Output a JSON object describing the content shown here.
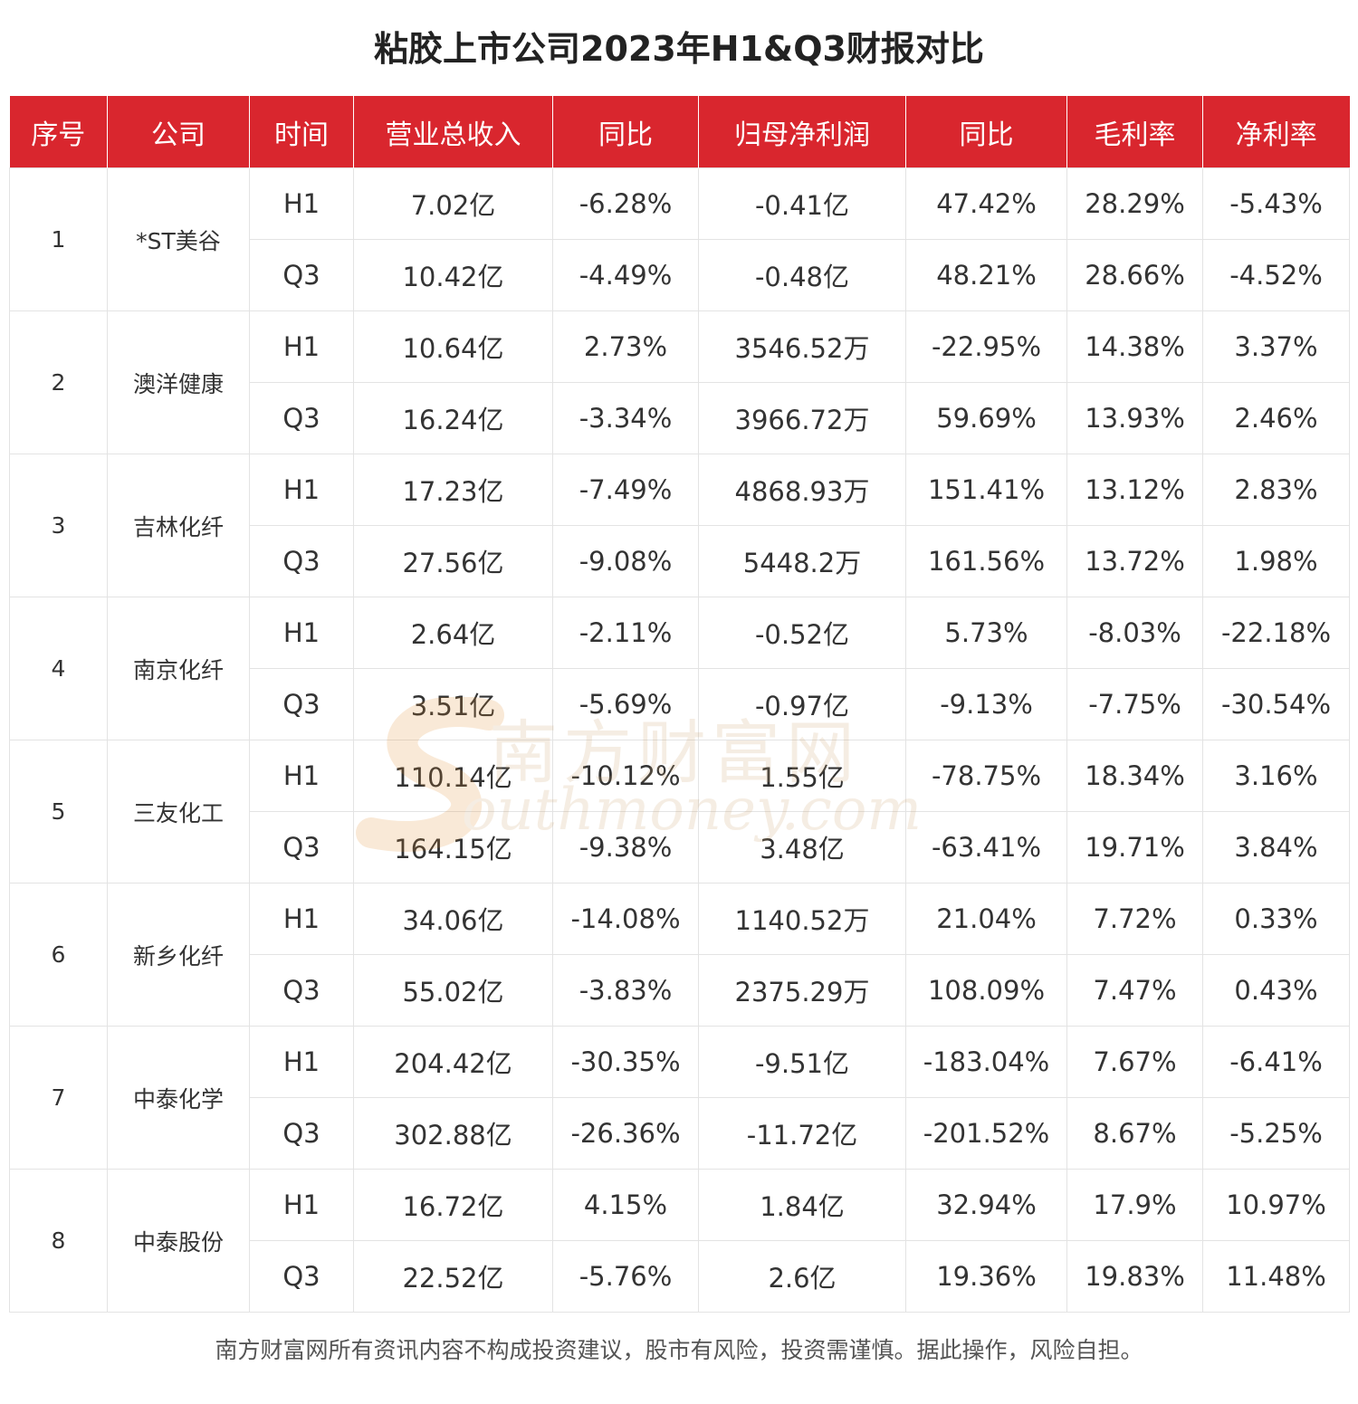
{
  "title": "粘胶上市公司2023年H1&Q3财报对比",
  "chart_data": {
    "type": "table",
    "columns": [
      "序号",
      "公司",
      "时间",
      "营业总收入",
      "同比",
      "归母净利润",
      "同比",
      "毛利率",
      "净利率"
    ],
    "rows": [
      {
        "index": "1",
        "company": "*ST美谷",
        "periods": [
          {
            "period": "H1",
            "revenue": "7.02亿",
            "revenue_yoy": "-6.28%",
            "net_profit": "-0.41亿",
            "net_profit_yoy": "47.42%",
            "gross_margin": "28.29%",
            "net_margin": "-5.43%"
          },
          {
            "period": "Q3",
            "revenue": "10.42亿",
            "revenue_yoy": "-4.49%",
            "net_profit": "-0.48亿",
            "net_profit_yoy": "48.21%",
            "gross_margin": "28.66%",
            "net_margin": "-4.52%"
          }
        ]
      },
      {
        "index": "2",
        "company": "澳洋健康",
        "periods": [
          {
            "period": "H1",
            "revenue": "10.64亿",
            "revenue_yoy": "2.73%",
            "net_profit": "3546.52万",
            "net_profit_yoy": "-22.95%",
            "gross_margin": "14.38%",
            "net_margin": "3.37%"
          },
          {
            "period": "Q3",
            "revenue": "16.24亿",
            "revenue_yoy": "-3.34%",
            "net_profit": "3966.72万",
            "net_profit_yoy": "59.69%",
            "gross_margin": "13.93%",
            "net_margin": "2.46%"
          }
        ]
      },
      {
        "index": "3",
        "company": "吉林化纤",
        "periods": [
          {
            "period": "H1",
            "revenue": "17.23亿",
            "revenue_yoy": "-7.49%",
            "net_profit": "4868.93万",
            "net_profit_yoy": "151.41%",
            "gross_margin": "13.12%",
            "net_margin": "2.83%"
          },
          {
            "period": "Q3",
            "revenue": "27.56亿",
            "revenue_yoy": "-9.08%",
            "net_profit": "5448.2万",
            "net_profit_yoy": "161.56%",
            "gross_margin": "13.72%",
            "net_margin": "1.98%"
          }
        ]
      },
      {
        "index": "4",
        "company": "南京化纤",
        "periods": [
          {
            "period": "H1",
            "revenue": "2.64亿",
            "revenue_yoy": "-2.11%",
            "net_profit": "-0.52亿",
            "net_profit_yoy": "5.73%",
            "gross_margin": "-8.03%",
            "net_margin": "-22.18%"
          },
          {
            "period": "Q3",
            "revenue": "3.51亿",
            "revenue_yoy": "-5.69%",
            "net_profit": "-0.97亿",
            "net_profit_yoy": "-9.13%",
            "gross_margin": "-7.75%",
            "net_margin": "-30.54%"
          }
        ]
      },
      {
        "index": "5",
        "company": "三友化工",
        "periods": [
          {
            "period": "H1",
            "revenue": "110.14亿",
            "revenue_yoy": "-10.12%",
            "net_profit": "1.55亿",
            "net_profit_yoy": "-78.75%",
            "gross_margin": "18.34%",
            "net_margin": "3.16%"
          },
          {
            "period": "Q3",
            "revenue": "164.15亿",
            "revenue_yoy": "-9.38%",
            "net_profit": "3.48亿",
            "net_profit_yoy": "-63.41%",
            "gross_margin": "19.71%",
            "net_margin": "3.84%"
          }
        ]
      },
      {
        "index": "6",
        "company": "新乡化纤",
        "periods": [
          {
            "period": "H1",
            "revenue": "34.06亿",
            "revenue_yoy": "-14.08%",
            "net_profit": "1140.52万",
            "net_profit_yoy": "21.04%",
            "gross_margin": "7.72%",
            "net_margin": "0.33%"
          },
          {
            "period": "Q3",
            "revenue": "55.02亿",
            "revenue_yoy": "-3.83%",
            "net_profit": "2375.29万",
            "net_profit_yoy": "108.09%",
            "gross_margin": "7.47%",
            "net_margin": "0.43%"
          }
        ]
      },
      {
        "index": "7",
        "company": "中泰化学",
        "periods": [
          {
            "period": "H1",
            "revenue": "204.42亿",
            "revenue_yoy": "-30.35%",
            "net_profit": "-9.51亿",
            "net_profit_yoy": "-183.04%",
            "gross_margin": "7.67%",
            "net_margin": "-6.41%"
          },
          {
            "period": "Q3",
            "revenue": "302.88亿",
            "revenue_yoy": "-26.36%",
            "net_profit": "-11.72亿",
            "net_profit_yoy": "-201.52%",
            "gross_margin": "8.67%",
            "net_margin": "-5.25%"
          }
        ]
      },
      {
        "index": "8",
        "company": "中泰股份",
        "periods": [
          {
            "period": "H1",
            "revenue": "16.72亿",
            "revenue_yoy": "4.15%",
            "net_profit": "1.84亿",
            "net_profit_yoy": "32.94%",
            "gross_margin": "17.9%",
            "net_margin": "10.97%"
          },
          {
            "period": "Q3",
            "revenue": "22.52亿",
            "revenue_yoy": "-5.76%",
            "net_profit": "2.6亿",
            "net_profit_yoy": "19.36%",
            "gross_margin": "19.83%",
            "net_margin": "11.48%"
          }
        ]
      }
    ]
  },
  "watermark": {
    "cn": "南方财富网",
    "en": "outhmoney.com"
  },
  "footer": "南方财富网所有资讯内容不构成投资建议，股市有风险，投资需谨慎。据此操作，风险自担。"
}
